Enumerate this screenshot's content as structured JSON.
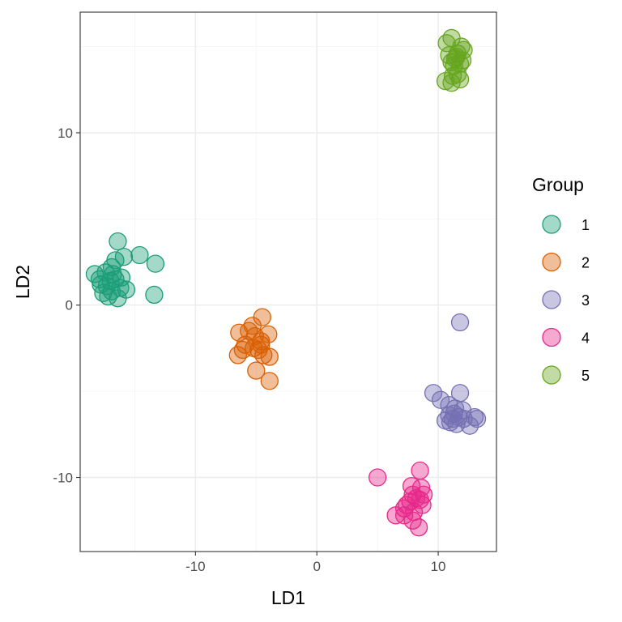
{
  "chart_data": {
    "type": "scatter",
    "xlabel": "LD1",
    "ylabel": "LD2",
    "xlim": [
      -19.5,
      14.8
    ],
    "ylim": [
      -14.3,
      17.0
    ],
    "x_ticks": [
      -10,
      0,
      10
    ],
    "y_ticks": [
      -10,
      0,
      10
    ],
    "x_tick_labels": [
      "-10",
      "0",
      "10"
    ],
    "y_tick_labels": [
      "-10",
      "0",
      "10"
    ],
    "grid": true,
    "legend": {
      "title": "Group",
      "position": "right"
    },
    "series": [
      {
        "name": "1",
        "fill": "#1B9E77",
        "stroke": "#1B9E77",
        "points": [
          [
            -16.4,
            3.7
          ],
          [
            -14.6,
            2.9
          ],
          [
            -13.3,
            2.4
          ],
          [
            -15.9,
            2.8
          ],
          [
            -16.6,
            2.6
          ],
          [
            -16.9,
            2.2
          ],
          [
            -17.4,
            1.9
          ],
          [
            -18.3,
            1.8
          ],
          [
            -16.1,
            1.6
          ],
          [
            -16.6,
            1.5
          ],
          [
            -17.0,
            1.4
          ],
          [
            -17.8,
            1.2
          ],
          [
            -17.3,
            1.1
          ],
          [
            -16.2,
            1.0
          ],
          [
            -15.7,
            0.9
          ],
          [
            -16.9,
            0.8
          ],
          [
            -17.6,
            0.7
          ],
          [
            -17.2,
            0.5
          ],
          [
            -16.4,
            0.4
          ],
          [
            -13.4,
            0.6
          ],
          [
            -17.9,
            1.5
          ],
          [
            -16.8,
            1.8
          ]
        ]
      },
      {
        "name": "2",
        "fill": "#D95F02",
        "stroke": "#D95F02",
        "points": [
          [
            -4.5,
            -0.7
          ],
          [
            -5.3,
            -1.2
          ],
          [
            -5.6,
            -1.5
          ],
          [
            -6.4,
            -1.6
          ],
          [
            -4.0,
            -1.7
          ],
          [
            -5.1,
            -1.8
          ],
          [
            -4.6,
            -2.1
          ],
          [
            -5.9,
            -2.3
          ],
          [
            -6.1,
            -2.6
          ],
          [
            -5.2,
            -2.5
          ],
          [
            -4.8,
            -2.6
          ],
          [
            -4.4,
            -2.9
          ],
          [
            -6.5,
            -2.9
          ],
          [
            -3.9,
            -3.0
          ],
          [
            -5.0,
            -3.8
          ],
          [
            -3.9,
            -4.4
          ],
          [
            -4.6,
            -2.3
          ]
        ]
      },
      {
        "name": "3",
        "fill": "#7570B3",
        "stroke": "#7570B3",
        "points": [
          [
            11.8,
            -1.0
          ],
          [
            9.6,
            -5.1
          ],
          [
            11.8,
            -5.1
          ],
          [
            10.2,
            -5.5
          ],
          [
            10.9,
            -5.8
          ],
          [
            11.4,
            -6.0
          ],
          [
            12.0,
            -6.1
          ],
          [
            11.3,
            -6.3
          ],
          [
            10.9,
            -6.4
          ],
          [
            11.7,
            -6.5
          ],
          [
            13.0,
            -6.5
          ],
          [
            13.2,
            -6.6
          ],
          [
            12.1,
            -6.6
          ],
          [
            10.6,
            -6.7
          ],
          [
            11.0,
            -6.8
          ],
          [
            11.5,
            -6.9
          ],
          [
            12.6,
            -7.0
          ],
          [
            11.2,
            -6.6
          ]
        ]
      },
      {
        "name": "4",
        "fill": "#E7298A",
        "stroke": "#E7298A",
        "points": [
          [
            5.0,
            -10.0
          ],
          [
            8.5,
            -9.6
          ],
          [
            7.8,
            -10.5
          ],
          [
            8.6,
            -10.6
          ],
          [
            7.9,
            -11.0
          ],
          [
            8.8,
            -11.0
          ],
          [
            8.5,
            -11.3
          ],
          [
            7.7,
            -11.4
          ],
          [
            7.4,
            -11.6
          ],
          [
            8.7,
            -11.6
          ],
          [
            7.2,
            -11.8
          ],
          [
            8.0,
            -12.0
          ],
          [
            6.5,
            -12.2
          ],
          [
            7.2,
            -12.2
          ],
          [
            7.9,
            -12.5
          ],
          [
            8.4,
            -12.9
          ],
          [
            8.2,
            -11.2
          ]
        ]
      },
      {
        "name": "5",
        "fill": "#66A61E",
        "stroke": "#66A61E",
        "points": [
          [
            11.1,
            15.5
          ],
          [
            10.7,
            15.2
          ],
          [
            11.9,
            15.0
          ],
          [
            12.1,
            14.8
          ],
          [
            11.6,
            14.6
          ],
          [
            10.9,
            14.5
          ],
          [
            11.4,
            14.3
          ],
          [
            12.0,
            14.2
          ],
          [
            11.1,
            14.1
          ],
          [
            11.8,
            14.0
          ],
          [
            11.3,
            13.9
          ],
          [
            11.6,
            13.4
          ],
          [
            11.2,
            13.3
          ],
          [
            11.8,
            13.1
          ],
          [
            10.6,
            13.0
          ],
          [
            11.1,
            12.9
          ],
          [
            11.5,
            14.4
          ]
        ]
      }
    ]
  }
}
